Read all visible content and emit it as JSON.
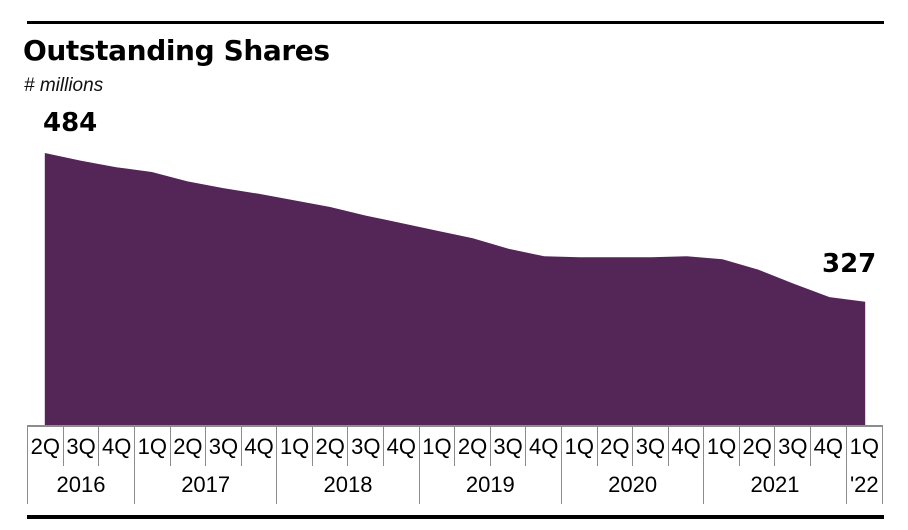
{
  "title": "Outstanding Shares",
  "subtitle": "# millions",
  "labels": {
    "first": "484",
    "last": "327"
  },
  "colors": {
    "area": "#542658",
    "rule": "#000000",
    "grid": "#8c8c8c",
    "text": "#000000"
  },
  "chart_data": {
    "type": "area",
    "title": "Outstanding Shares",
    "ylabel": "# millions",
    "categories": [
      "2Q 2016",
      "3Q 2016",
      "4Q 2016",
      "1Q 2017",
      "2Q 2017",
      "3Q 2017",
      "4Q 2017",
      "1Q 2018",
      "2Q 2018",
      "3Q 2018",
      "4Q 2018",
      "1Q 2019",
      "2Q 2019",
      "3Q 2019",
      "4Q 2019",
      "1Q 2020",
      "2Q 2020",
      "3Q 2020",
      "4Q 2020",
      "1Q 2021",
      "2Q 2021",
      "3Q 2021",
      "4Q 2021",
      "1Q 2022"
    ],
    "values": [
      484,
      476,
      469,
      464,
      454,
      447,
      441,
      434,
      427,
      418,
      410,
      402,
      394,
      383,
      375,
      374,
      374,
      374,
      375,
      372,
      361,
      346,
      332,
      327
    ],
    "ylim": [
      196,
      484
    ],
    "grid": false,
    "legend": false,
    "annotations": [
      {
        "category": "2Q 2016",
        "value": 484,
        "text": "484"
      },
      {
        "category": "1Q 2022",
        "value": 327,
        "text": "327"
      }
    ],
    "x_axis": {
      "years": [
        {
          "label": "2016",
          "quarters": [
            "2Q",
            "3Q",
            "4Q"
          ]
        },
        {
          "label": "2017",
          "quarters": [
            "1Q",
            "2Q",
            "3Q",
            "4Q"
          ]
        },
        {
          "label": "2018",
          "quarters": [
            "1Q",
            "2Q",
            "3Q",
            "4Q"
          ]
        },
        {
          "label": "2019",
          "quarters": [
            "1Q",
            "2Q",
            "3Q",
            "4Q"
          ]
        },
        {
          "label": "2020",
          "quarters": [
            "1Q",
            "2Q",
            "3Q",
            "4Q"
          ]
        },
        {
          "label": "2021",
          "quarters": [
            "1Q",
            "2Q",
            "3Q",
            "4Q"
          ]
        },
        {
          "label": "'22",
          "quarters": [
            "1Q"
          ]
        }
      ]
    }
  }
}
